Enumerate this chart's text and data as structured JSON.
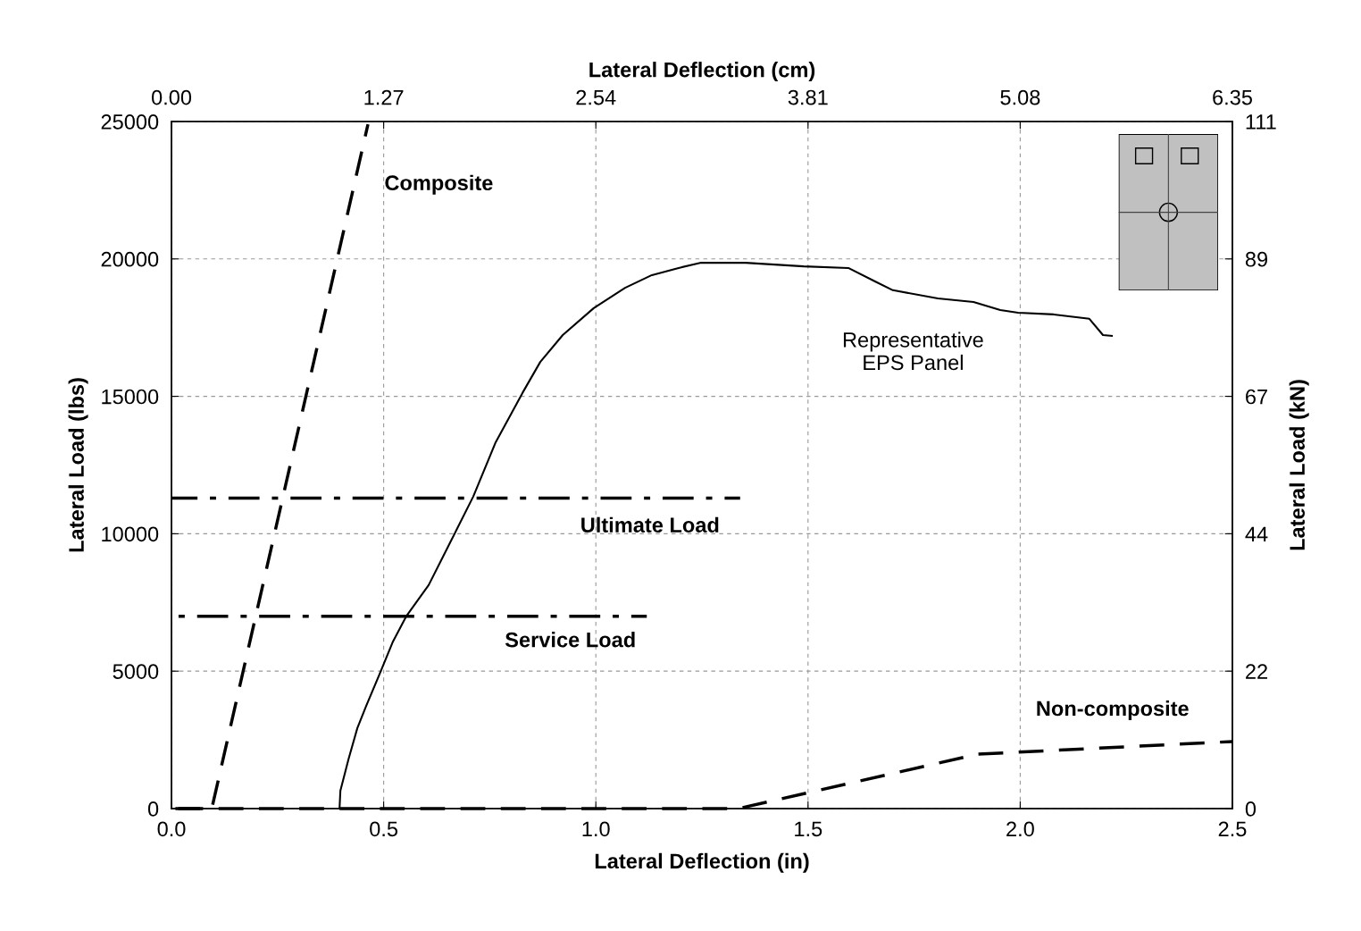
{
  "chart_data": {
    "type": "line",
    "xlabel": "Lateral Deflection (in)",
    "ylabel": "Lateral Load (lbs)",
    "x2label": "Lateral Deflection (cm)",
    "y2label": "Lateral Load (kN)",
    "xlim": [
      0,
      2.5
    ],
    "ylim": [
      0,
      25000
    ],
    "xticks": [
      {
        "value": 0,
        "label": "0.0"
      },
      0.5,
      {
        "value": 1,
        "label": "1.0"
      },
      1.5,
      {
        "value": 2,
        "label": "2.0"
      },
      2.5
    ],
    "yticks": [
      0,
      5000,
      10000,
      15000,
      20000,
      25000
    ],
    "x2lim": [
      0,
      6.35
    ],
    "x2ticks": [
      {
        "value": 0,
        "label": "0.00"
      },
      1.27,
      2.54,
      3.81,
      5.08,
      6.35
    ],
    "y2lim": [
      0,
      111.2
    ],
    "y2ticks": [
      0,
      {
        "value": 22.24,
        "label": "22"
      },
      {
        "value": 44.48,
        "label": "44"
      },
      {
        "value": 66.72,
        "label": "67"
      },
      {
        "value": 88.96,
        "label": "89"
      },
      {
        "value": 111.2,
        "label": "111"
      }
    ],
    "grid": true,
    "legend": false,
    "marker": "none",
    "series": [
      {
        "name": "Representative\nEPS Panel",
        "color": "#000000",
        "line_style": "solid",
        "x": [
          0.396,
          0.398,
          0.417,
          0.438,
          0.459,
          0.49,
          0.522,
          0.553,
          0.606,
          0.659,
          0.711,
          0.764,
          0.827,
          0.869,
          0.922,
          0.995,
          1.069,
          1.132,
          1.195,
          1.248,
          1.353,
          1.49,
          1.595,
          1.658,
          1.7,
          1.806,
          1.89,
          1.953,
          1.995,
          2.079,
          2.163,
          2.195,
          2.216
        ],
        "values": [
          0,
          650,
          1790,
          2930,
          3740,
          4880,
          6080,
          6990,
          8130,
          9750,
          11350,
          13330,
          15120,
          16250,
          17230,
          18210,
          18950,
          19410,
          19670,
          19860,
          19860,
          19730,
          19670,
          19180,
          18860,
          18560,
          18430,
          18140,
          18040,
          17980,
          17820,
          17230,
          17200
        ]
      },
      {
        "name": "Composite",
        "color": "#000000",
        "line_style": "dashed",
        "x": [
          0,
          0.095,
          0.463
        ],
        "values": [
          0,
          0,
          24900
        ]
      },
      {
        "name": "Non-composite",
        "color": "#000000",
        "line_style": "dashed",
        "x": [
          0,
          1.336,
          1.9,
          2.5
        ],
        "values": [
          0,
          0,
          1980,
          2440
        ]
      },
      {
        "name": "Ultimate Load",
        "color": "#000000",
        "line_style": "dashdot",
        "x": [
          0,
          1.34
        ],
        "values": [
          11300,
          11300
        ]
      },
      {
        "name": "Service Load",
        "color": "#000000",
        "line_style": "dashdot",
        "x": [
          0,
          1.12
        ],
        "values": [
          7000,
          7000
        ]
      }
    ]
  }
}
